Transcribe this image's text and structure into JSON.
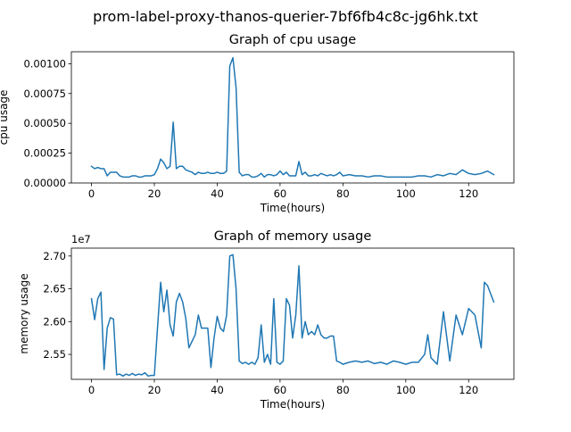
{
  "figure": {
    "suptitle": "prom-label-proxy-thanos-querier-7bf6fb4c8c-jg6hk.txt"
  },
  "chart_data": [
    {
      "type": "line",
      "title": "Graph of cpu usage",
      "xlabel": "Time(hours)",
      "ylabel": "cpu usage",
      "xlim": [
        -6.4,
        134.4
      ],
      "ylim": [
        0,
        0.0011
      ],
      "xticks": [
        0,
        20,
        40,
        60,
        80,
        100,
        120
      ],
      "xtick_labels": [
        "0",
        "20",
        "40",
        "60",
        "80",
        "100",
        "120"
      ],
      "yticks": [
        0,
        0.00025,
        0.0005,
        0.00075,
        0.001
      ],
      "ytick_labels": [
        "0.00000",
        "0.00025",
        "0.00050",
        "0.00075",
        "0.00100"
      ],
      "offset_label": "",
      "grid": false,
      "color": "#1f77b4",
      "series": [
        {
          "x": [
            0,
            1,
            2,
            3,
            4,
            5,
            6,
            7,
            8,
            9,
            10,
            11,
            12,
            13,
            14,
            15,
            16,
            17,
            18,
            19,
            20,
            21,
            22,
            23,
            24,
            25,
            26,
            27,
            28,
            29,
            30,
            31,
            32,
            33,
            34,
            35,
            36,
            37,
            38,
            39,
            40,
            41,
            42,
            43,
            44,
            45,
            46,
            47,
            48,
            49,
            50,
            51,
            52,
            53,
            54,
            55,
            56,
            57,
            58,
            59,
            60,
            61,
            62,
            63,
            64,
            65,
            66,
            67,
            68,
            69,
            70,
            71,
            72,
            73,
            74,
            75,
            76,
            77,
            78,
            79,
            80,
            82,
            84,
            86,
            88,
            90,
            92,
            94,
            96,
            98,
            100,
            102,
            104,
            106,
            108,
            110,
            112,
            114,
            116,
            118,
            120,
            122,
            124,
            126,
            128
          ],
          "y": [
            0.00014,
            0.00012,
            0.00013,
            0.00012,
            0.00012,
            6e-05,
            9e-05,
            9e-05,
            9e-05,
            6e-05,
            5e-05,
            5e-05,
            5e-05,
            6e-05,
            6e-05,
            5e-05,
            5e-05,
            6e-05,
            6e-05,
            6e-05,
            7e-05,
            0.00012,
            0.0002,
            0.00017,
            0.00012,
            0.00014,
            0.00051,
            0.00012,
            0.00014,
            0.00014,
            0.00011,
            0.0001,
            9e-05,
            7e-05,
            9e-05,
            8e-05,
            8e-05,
            9e-05,
            8e-05,
            8e-05,
            9e-05,
            8e-05,
            8e-05,
            0.0001,
            0.00098,
            0.00105,
            0.0008,
            9e-05,
            6e-05,
            7e-05,
            7e-05,
            5e-05,
            5e-05,
            6e-05,
            8e-05,
            5e-05,
            7e-05,
            7e-05,
            6e-05,
            7e-05,
            0.0001,
            7e-05,
            9e-05,
            6e-05,
            6e-05,
            6e-05,
            0.00018,
            7e-05,
            9e-05,
            6e-05,
            6e-05,
            7e-05,
            6e-05,
            8e-05,
            7e-05,
            6e-05,
            7e-05,
            6e-05,
            7e-05,
            9e-05,
            6e-05,
            7e-05,
            6e-05,
            6e-05,
            5e-05,
            6e-05,
            6e-05,
            5e-05,
            5e-05,
            5e-05,
            5e-05,
            5e-05,
            6e-05,
            6e-05,
            5e-05,
            7e-05,
            6e-05,
            8e-05,
            7e-05,
            0.00011,
            8e-05,
            7e-05,
            8e-05,
            0.0001,
            7e-05
          ]
        }
      ]
    },
    {
      "type": "line",
      "title": "Graph of memory usage",
      "xlabel": "Time(hours)",
      "ylabel": "memory usage",
      "xlim": [
        -6.4,
        134.4
      ],
      "ylim": [
        25120000,
        27120000
      ],
      "xticks": [
        0,
        20,
        40,
        60,
        80,
        100,
        120
      ],
      "xtick_labels": [
        "0",
        "20",
        "40",
        "60",
        "80",
        "100",
        "120"
      ],
      "yticks": [
        25500000,
        26000000,
        26500000,
        27000000
      ],
      "ytick_labels": [
        "2.55",
        "2.60",
        "2.65",
        "2.70"
      ],
      "offset_label": "1e7",
      "grid": false,
      "color": "#1f77b4",
      "series": [
        {
          "x": [
            0,
            1,
            2,
            3,
            4,
            5,
            6,
            7,
            8,
            9,
            10,
            11,
            12,
            13,
            14,
            15,
            16,
            17,
            18,
            19,
            20,
            21,
            22,
            23,
            24,
            25,
            26,
            27,
            28,
            29,
            30,
            31,
            32,
            33,
            34,
            35,
            36,
            37,
            38,
            39,
            40,
            41,
            42,
            43,
            44,
            45,
            46,
            47,
            48,
            49,
            50,
            51,
            52,
            53,
            54,
            55,
            56,
            57,
            58,
            59,
            60,
            61,
            62,
            63,
            64,
            65,
            66,
            67,
            68,
            69,
            70,
            71,
            72,
            73,
            74,
            75,
            76,
            77,
            78,
            79,
            80,
            82,
            84,
            86,
            88,
            90,
            92,
            94,
            96,
            98,
            100,
            102,
            104,
            106,
            107,
            108,
            110,
            112,
            114,
            116,
            118,
            120,
            122,
            124,
            125,
            126,
            128
          ],
          "y": [
            26350000,
            26030000,
            26350000,
            26450000,
            25270000,
            25900000,
            26060000,
            26040000,
            25190000,
            25200000,
            25170000,
            25200000,
            25180000,
            25210000,
            25180000,
            25200000,
            25190000,
            25220000,
            25170000,
            25180000,
            25180000,
            25900000,
            26600000,
            26150000,
            26480000,
            25950000,
            25780000,
            26300000,
            26430000,
            26300000,
            26050000,
            25600000,
            25700000,
            25800000,
            26100000,
            25900000,
            25900000,
            25900000,
            25300000,
            25750000,
            26080000,
            25900000,
            25850000,
            26100000,
            27000000,
            27020000,
            26500000,
            25400000,
            25360000,
            25380000,
            25350000,
            25380000,
            25350000,
            25450000,
            25950000,
            25380000,
            25500000,
            25350000,
            26350000,
            25380000,
            25350000,
            25400000,
            26350000,
            26250000,
            25750000,
            26100000,
            26850000,
            25750000,
            26000000,
            25800000,
            25850000,
            25800000,
            25950000,
            25800000,
            25750000,
            25750000,
            25780000,
            25780000,
            25400000,
            25380000,
            25350000,
            25380000,
            25400000,
            25380000,
            25400000,
            25360000,
            25380000,
            25350000,
            25400000,
            25380000,
            25350000,
            25380000,
            25380000,
            25500000,
            25800000,
            25450000,
            25350000,
            26150000,
            25400000,
            26100000,
            25800000,
            26200000,
            26100000,
            25600000,
            26600000,
            26550000,
            26300000
          ]
        }
      ]
    }
  ]
}
